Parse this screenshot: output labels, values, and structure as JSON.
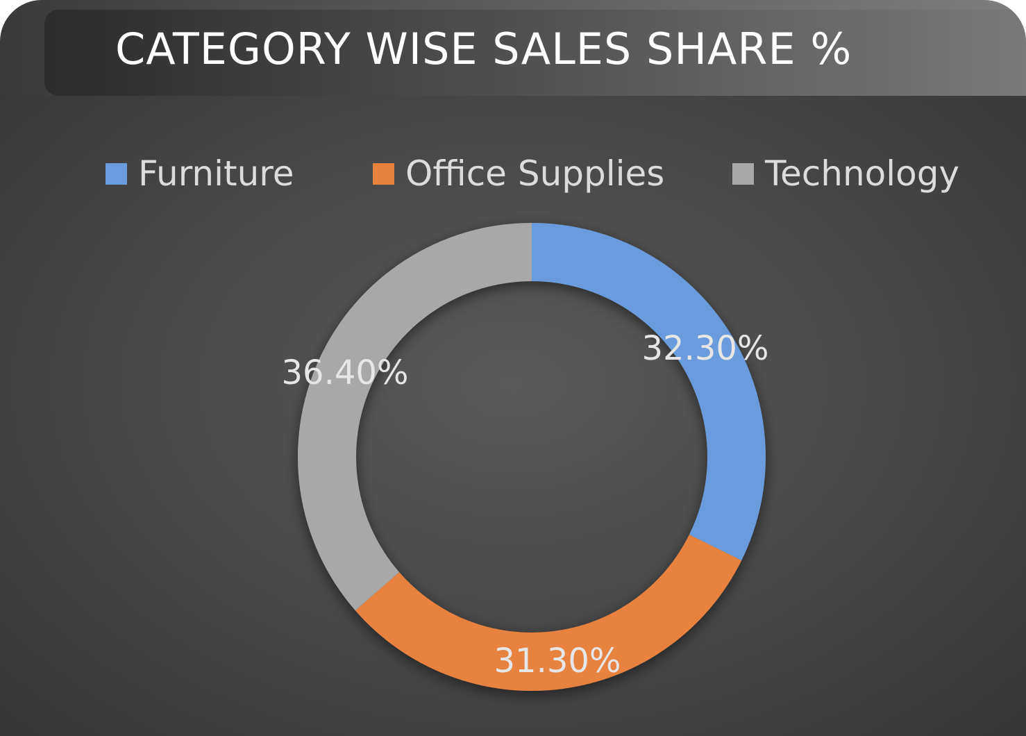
{
  "chart_data": {
    "type": "pie",
    "subtype": "donut",
    "title": "CATEGORY WISE SALES SHARE %",
    "legend_position": "top",
    "series": [
      {
        "name": "Furniture",
        "value": 32.3,
        "label": "32.30%",
        "color": "#6a9bdc"
      },
      {
        "name": "Office Supplies",
        "value": 31.3,
        "label": "31.30%",
        "color": "#e8823f"
      },
      {
        "name": "Technology",
        "value": 36.4,
        "label": "36.40%",
        "color": "#a8a8a8"
      }
    ],
    "start_angle_deg": 0,
    "direction": "clockwise"
  }
}
